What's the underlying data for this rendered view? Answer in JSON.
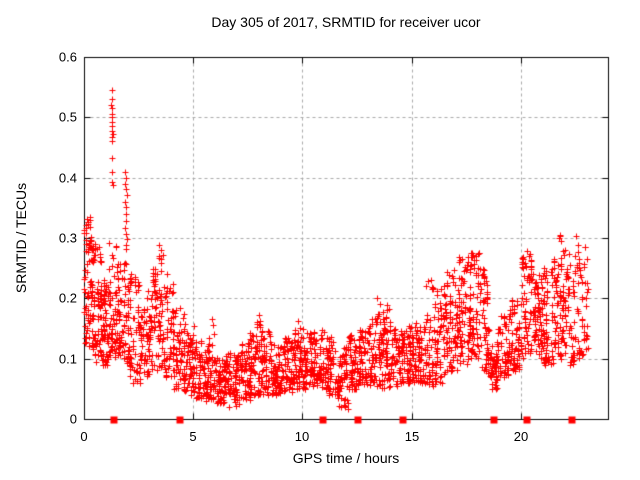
{
  "chart_data": {
    "type": "scatter",
    "title": "Day 305 of 2017, SRMTID for receiver ucor",
    "xlabel": "GPS time / hours",
    "ylabel": "SRMTID / TECUs",
    "xlim": [
      0,
      24
    ],
    "ylim": [
      0,
      0.6
    ],
    "xticks": [
      {
        "v": 0,
        "label": "0"
      },
      {
        "v": 5,
        "label": "5"
      },
      {
        "v": 10,
        "label": "10"
      },
      {
        "v": 15,
        "label": "15"
      },
      {
        "v": 20,
        "label": "20"
      }
    ],
    "yticks": [
      {
        "v": 0,
        "label": "0"
      },
      {
        "v": 0.1,
        "label": "0.1"
      },
      {
        "v": 0.2,
        "label": "0.2"
      },
      {
        "v": 0.3,
        "label": "0.3"
      },
      {
        "v": 0.4,
        "label": "0.4"
      },
      {
        "v": 0.5,
        "label": "0.5"
      },
      {
        "v": 0.6,
        "label": "0.6"
      }
    ],
    "grid": {
      "dashed": true,
      "horizontal_at": [
        0.1,
        0.2,
        0.3,
        0.4,
        0.5
      ],
      "vertical_at": [
        5,
        10,
        15,
        20
      ]
    },
    "colors": {
      "points": "#ff0000",
      "grid": "#a8a8a8",
      "axis": "#000000",
      "text": "#000000"
    },
    "seed": 3052017,
    "series": [
      {
        "name": "srmtid-scatter",
        "marker": "plus",
        "density_profile": [
          [
            0.0,
            0.4,
            0.12,
            0.335,
            1.0,
            58
          ],
          [
            0.4,
            0.8,
            0.09,
            0.3,
            1.15,
            50
          ],
          [
            0.8,
            1.1,
            0.09,
            0.23,
            1.2,
            40
          ],
          [
            1.1,
            1.45,
            0.1,
            0.3,
            1.2,
            38
          ],
          [
            1.45,
            1.8,
            0.1,
            0.26,
            1.2,
            40
          ],
          [
            1.8,
            2.1,
            0.09,
            0.26,
            1.2,
            36
          ],
          [
            2.1,
            2.6,
            0.06,
            0.24,
            1.3,
            46
          ],
          [
            2.6,
            3.1,
            0.07,
            0.22,
            1.3,
            46
          ],
          [
            3.1,
            3.6,
            0.08,
            0.27,
            1.1,
            50
          ],
          [
            3.6,
            4.1,
            0.07,
            0.245,
            1.25,
            46
          ],
          [
            4.1,
            4.6,
            0.05,
            0.19,
            1.35,
            46
          ],
          [
            4.6,
            5.1,
            0.04,
            0.16,
            1.35,
            46
          ],
          [
            5.1,
            5.6,
            0.035,
            0.13,
            1.35,
            46
          ],
          [
            5.6,
            6.1,
            0.03,
            0.15,
            1.5,
            46
          ],
          [
            6.1,
            6.6,
            0.025,
            0.105,
            1.3,
            48
          ],
          [
            6.6,
            7.1,
            0.025,
            0.11,
            1.3,
            48
          ],
          [
            7.1,
            7.6,
            0.03,
            0.13,
            1.3,
            48
          ],
          [
            7.6,
            8.1,
            0.04,
            0.165,
            1.4,
            48
          ],
          [
            8.1,
            8.6,
            0.04,
            0.155,
            1.35,
            46
          ],
          [
            8.6,
            9.1,
            0.04,
            0.125,
            1.2,
            46
          ],
          [
            9.1,
            9.6,
            0.045,
            0.135,
            1.2,
            46
          ],
          [
            9.6,
            10.1,
            0.05,
            0.155,
            1.25,
            46
          ],
          [
            10.1,
            10.6,
            0.05,
            0.145,
            1.2,
            46
          ],
          [
            10.6,
            11.1,
            0.05,
            0.15,
            1.2,
            46
          ],
          [
            11.1,
            11.6,
            0.04,
            0.14,
            1.2,
            46
          ],
          [
            11.6,
            12.1,
            0.02,
            0.12,
            1.2,
            42
          ],
          [
            12.1,
            12.6,
            0.05,
            0.14,
            1.2,
            46
          ],
          [
            12.6,
            13.1,
            0.055,
            0.155,
            1.2,
            46
          ],
          [
            13.1,
            13.6,
            0.055,
            0.175,
            1.3,
            46
          ],
          [
            13.6,
            14.1,
            0.05,
            0.19,
            1.35,
            46
          ],
          [
            14.1,
            14.6,
            0.055,
            0.15,
            1.2,
            46
          ],
          [
            14.6,
            15.1,
            0.06,
            0.155,
            1.2,
            46
          ],
          [
            15.1,
            15.6,
            0.06,
            0.165,
            1.2,
            46
          ],
          [
            15.6,
            16.1,
            0.055,
            0.23,
            1.45,
            46
          ],
          [
            16.1,
            16.6,
            0.06,
            0.22,
            1.3,
            48
          ],
          [
            16.6,
            17.1,
            0.08,
            0.25,
            1.2,
            48
          ],
          [
            17.1,
            17.6,
            0.09,
            0.27,
            1.1,
            50
          ],
          [
            17.6,
            18.1,
            0.1,
            0.275,
            1.0,
            55
          ],
          [
            18.1,
            18.5,
            0.08,
            0.25,
            1.2,
            40
          ],
          [
            18.5,
            19.0,
            0.05,
            0.15,
            1.2,
            46
          ],
          [
            19.0,
            19.5,
            0.07,
            0.17,
            1.2,
            46
          ],
          [
            19.5,
            20.0,
            0.08,
            0.2,
            1.2,
            46
          ],
          [
            20.0,
            20.5,
            0.1,
            0.275,
            1.0,
            52
          ],
          [
            20.5,
            21.0,
            0.1,
            0.24,
            1.1,
            48
          ],
          [
            21.0,
            21.5,
            0.09,
            0.25,
            1.1,
            48
          ],
          [
            21.5,
            22.0,
            0.1,
            0.305,
            1.1,
            50
          ],
          [
            22.0,
            22.5,
            0.09,
            0.28,
            1.25,
            44
          ],
          [
            22.5,
            23.1,
            0.1,
            0.285,
            1.2,
            40
          ]
        ],
        "extra_points": [
          [
            1.26,
            0.545
          ],
          [
            1.28,
            0.53
          ],
          [
            1.24,
            0.52
          ],
          [
            1.29,
            0.515
          ],
          [
            1.27,
            0.505
          ],
          [
            1.3,
            0.5
          ],
          [
            1.26,
            0.492
          ],
          [
            1.29,
            0.486
          ],
          [
            1.27,
            0.478
          ],
          [
            1.31,
            0.472
          ],
          [
            1.28,
            0.467
          ],
          [
            1.3,
            0.461
          ],
          [
            1.28,
            0.432
          ],
          [
            1.26,
            0.41
          ],
          [
            1.29,
            0.393
          ],
          [
            1.32,
            0.388
          ],
          [
            1.9,
            0.41
          ],
          [
            1.93,
            0.4
          ],
          [
            1.88,
            0.39
          ],
          [
            1.92,
            0.381
          ],
          [
            1.95,
            0.371
          ],
          [
            1.9,
            0.36
          ],
          [
            1.93,
            0.351
          ],
          [
            1.91,
            0.34
          ],
          [
            1.94,
            0.329
          ],
          [
            1.9,
            0.317
          ],
          [
            1.92,
            0.307
          ],
          [
            1.95,
            0.298
          ],
          [
            1.91,
            0.289
          ],
          [
            1.93,
            0.281
          ],
          [
            0.12,
            0.332
          ],
          [
            0.2,
            0.326
          ],
          [
            0.28,
            0.318
          ],
          [
            0.09,
            0.309
          ],
          [
            3.45,
            0.288
          ],
          [
            3.52,
            0.28
          ],
          [
            3.6,
            0.272
          ],
          [
            5.88,
            0.166
          ],
          [
            5.92,
            0.156
          ],
          [
            8.02,
            0.173
          ],
          [
            8.07,
            0.163
          ],
          [
            9.78,
            0.162
          ],
          [
            13.42,
            0.2
          ],
          [
            13.58,
            0.19
          ],
          [
            15.9,
            0.23
          ],
          [
            15.95,
            0.218
          ],
          [
            17.8,
            0.272
          ],
          [
            17.88,
            0.264
          ],
          [
            20.28,
            0.279
          ],
          [
            20.36,
            0.27
          ],
          [
            21.75,
            0.3
          ],
          [
            21.85,
            0.295
          ],
          [
            22.52,
            0.303
          ],
          [
            22.62,
            0.288
          ],
          [
            11.95,
            0.022
          ],
          [
            12.08,
            0.016
          ],
          [
            6.65,
            0.02
          ],
          [
            6.95,
            0.022
          ]
        ]
      },
      {
        "name": "baseline-flags",
        "marker": "filled-square",
        "points": [
          [
            1.35,
            0
          ],
          [
            4.35,
            0
          ],
          [
            10.9,
            0
          ],
          [
            12.5,
            0
          ],
          [
            14.55,
            0
          ],
          [
            18.75,
            0
          ],
          [
            20.25,
            0
          ],
          [
            22.3,
            0
          ]
        ]
      }
    ]
  }
}
